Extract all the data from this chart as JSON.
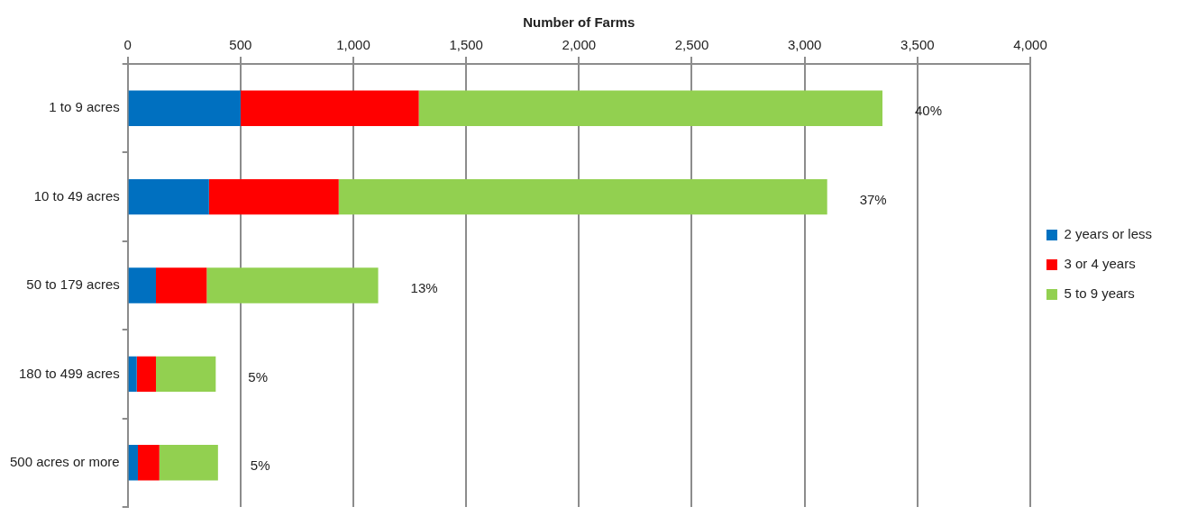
{
  "chart_data": {
    "type": "bar",
    "orientation": "horizontal",
    "stacked": true,
    "xlabel": "Number of Farms",
    "categories": [
      "1 to 9 acres",
      "10 to 49 acres",
      "50 to 179 acres",
      "180 to 499 acres",
      "500 acres or more"
    ],
    "series": [
      {
        "name": "2 years or less",
        "color": "#0070c0",
        "values": [
          500,
          360,
          125,
          40,
          45
        ]
      },
      {
        "name": "3 or 4 years",
        "color": "#ff0000",
        "values": [
          790,
          575,
          225,
          85,
          95
        ]
      },
      {
        "name": "5 to 9 years",
        "color": "#92d050",
        "values": [
          2055,
          2165,
          760,
          265,
          260
        ]
      }
    ],
    "annotations": [
      {
        "text": "40%",
        "x": 3345,
        "y": "1 to 9 acres"
      },
      {
        "text": "37%",
        "x": 3100,
        "y": "10 to 49 acres"
      },
      {
        "text": "13%",
        "x": 1110,
        "y": "50 to 179 acres"
      },
      {
        "text": "5%",
        "x": 390,
        "y": "180 to 499 acres"
      },
      {
        "text": "5%",
        "x": 400,
        "y": "500 acres or more"
      }
    ],
    "xlim": [
      0,
      4000
    ],
    "xticks": [
      0,
      500,
      {
        "value": 1000,
        "label": "1,000"
      },
      {
        "value": 1500,
        "label": "1,500"
      },
      {
        "value": 2000,
        "label": "2,000"
      },
      {
        "value": 2500,
        "label": "2,500"
      },
      {
        "value": 3000,
        "label": "3,000"
      },
      {
        "value": 3500,
        "label": "3,500"
      },
      {
        "value": 4000,
        "label": "4,000"
      }
    ],
    "grid": "x",
    "legend": "right"
  }
}
